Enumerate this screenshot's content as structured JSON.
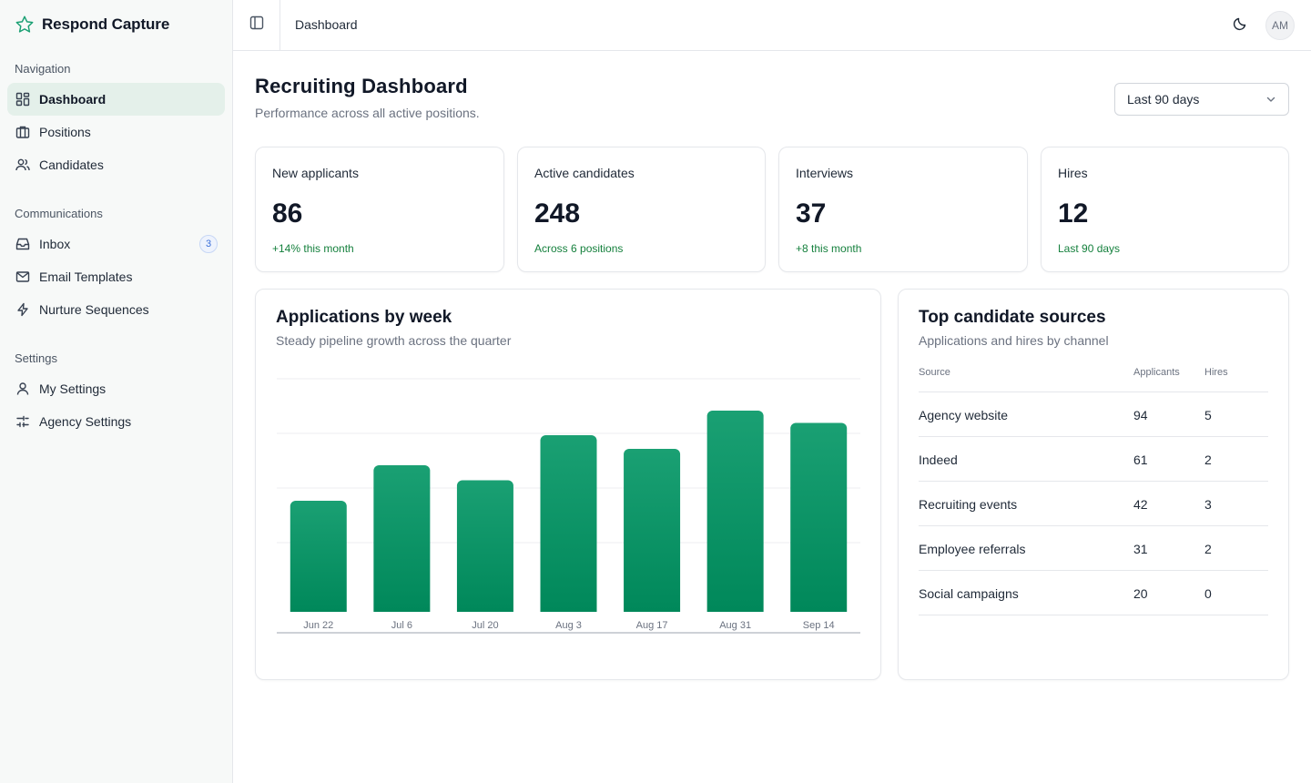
{
  "app": {
    "name": "Respond Capture"
  },
  "sidebar": {
    "sections": [
      {
        "title": "Navigation",
        "items": [
          {
            "label": "Dashboard",
            "icon": "dashboard-icon",
            "active": true
          },
          {
            "label": "Positions",
            "icon": "briefcase-icon"
          },
          {
            "label": "Candidates",
            "icon": "users-icon"
          }
        ]
      },
      {
        "title": "Communications",
        "items": [
          {
            "label": "Inbox",
            "icon": "inbox-icon",
            "badge": "3"
          },
          {
            "label": "Email Templates",
            "icon": "mail-icon"
          },
          {
            "label": "Nurture Sequences",
            "icon": "lightning-icon"
          }
        ]
      },
      {
        "title": "Settings",
        "items": [
          {
            "label": "My Settings",
            "icon": "user-icon"
          },
          {
            "label": "Agency Settings",
            "icon": "sliders-icon"
          }
        ]
      }
    ]
  },
  "header": {
    "breadcrumb": "Dashboard",
    "avatar_initials": "AM"
  },
  "main": {
    "title": "Recruiting Dashboard",
    "subtitle": "Performance across all active positions.",
    "range": "Last 90 days",
    "stats": [
      {
        "label": "New applicants",
        "value": "86",
        "note": "+14% this month"
      },
      {
        "label": "Active candidates",
        "value": "248",
        "note": "Across 6 positions"
      },
      {
        "label": "Interviews",
        "value": "37",
        "note": "+8 this month"
      },
      {
        "label": "Hires",
        "value": "12",
        "note": "Last 90 days"
      }
    ],
    "chart_panel": {
      "title": "Applications by week",
      "subtitle": "Steady pipeline growth across the quarter"
    },
    "sources_panel": {
      "title": "Top candidate sources",
      "subtitle": "Applications and hires by channel",
      "columns": [
        "Source",
        "Applicants",
        "Hires"
      ],
      "rows": [
        [
          "Agency website",
          "94",
          "5"
        ],
        [
          "Indeed",
          "61",
          "2"
        ],
        [
          "Recruiting events",
          "42",
          "3"
        ],
        [
          "Employee referrals",
          "31",
          "2"
        ],
        [
          "Social campaigns",
          "20",
          "0"
        ]
      ]
    }
  },
  "colors": {
    "accent": "#0a8a5a",
    "accent_light": "#1aa073",
    "active_nav": "#e4f0ea",
    "positive": "#15803d"
  },
  "chart_data": {
    "type": "bar",
    "title": "Applications by week",
    "subtitle": "Steady pipeline growth across the quarter",
    "categories": [
      "Jun 22",
      "Jul 6",
      "Jul 20",
      "Aug 3",
      "Aug 17",
      "Aug 31",
      "Sep 14"
    ],
    "values": [
      41,
      54,
      48.5,
      65,
      60,
      74,
      69.5
    ],
    "ylim": [
      0,
      80
    ],
    "grid": true,
    "xlabel": "",
    "ylabel": ""
  }
}
